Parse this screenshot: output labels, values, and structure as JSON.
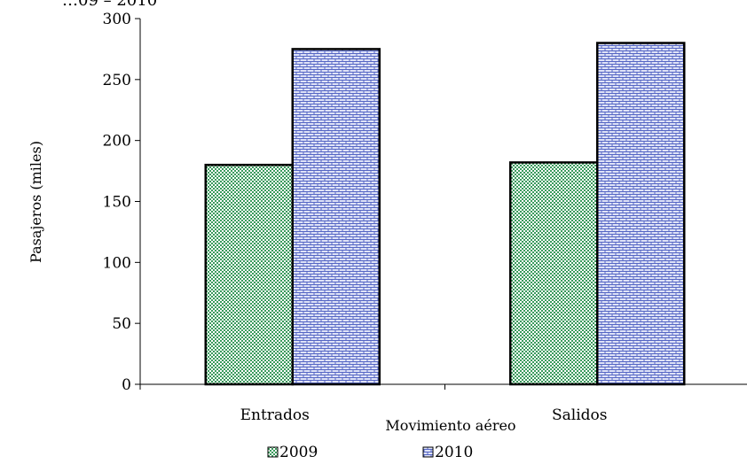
{
  "top_fragment": "…09 – 2010",
  "chart_data": {
    "type": "bar",
    "categories": [
      "Entrados",
      "Salidos"
    ],
    "series": [
      {
        "name": "2009",
        "values": [
          180,
          182
        ],
        "color": "#3a9a5c",
        "pattern": "checker"
      },
      {
        "name": "2010",
        "values": [
          275,
          280
        ],
        "color": "#6f7fd0",
        "pattern": "brick"
      }
    ],
    "xlabel": "Movimiento aéreo",
    "ylabel": "Pasajeros (miles)",
    "ylim": [
      0,
      300
    ],
    "yticks": [
      0,
      50,
      100,
      150,
      200,
      250,
      300
    ],
    "grid": false,
    "legend_position": "bottom"
  }
}
